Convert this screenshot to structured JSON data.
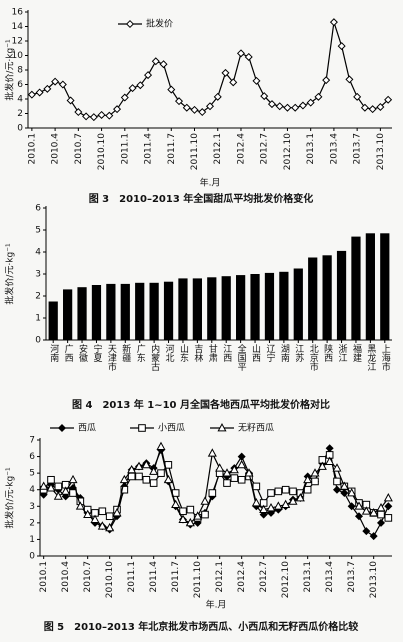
{
  "chart_data": [
    {
      "type": "line",
      "caption": "图 3　2010–2013 年全国甜瓜平均批发价格变化",
      "y_label": "批发价/元·kg⁻¹",
      "x_label": "年.月",
      "categories": [
        "2010.1",
        null,
        null,
        "2010.4",
        null,
        null,
        "2010.7",
        null,
        null,
        "2010.10",
        null,
        null,
        "2011.1",
        null,
        null,
        "2011.4",
        null,
        null,
        "2011.7",
        null,
        null,
        "2011.10",
        null,
        null,
        "2012.1",
        null,
        null,
        "2012.4",
        null,
        null,
        "2012.7",
        null,
        null,
        "2012.10",
        null,
        null,
        "2013.1",
        null,
        null,
        "2013.4",
        null,
        null,
        "2013.7",
        null,
        null,
        "2013.10",
        null
      ],
      "series": [
        {
          "name": "批发价",
          "color": "#000000",
          "marker": "diamond",
          "filled": false,
          "values": [
            4.6,
            4.9,
            5.4,
            6.4,
            6.0,
            3.8,
            2.2,
            1.6,
            1.5,
            1.8,
            1.7,
            2.6,
            4.2,
            5.5,
            5.9,
            7.3,
            9.2,
            8.8,
            5.3,
            3.7,
            2.8,
            2.5,
            2.2,
            3.0,
            4.3,
            7.6,
            6.3,
            10.3,
            9.8,
            6.5,
            4.4,
            3.3,
            3.0,
            2.8,
            2.8,
            3.1,
            3.5,
            4.3,
            6.6,
            14.6,
            11.3,
            6.7,
            4.3,
            2.8,
            2.6,
            2.9,
            3.9
          ]
        }
      ],
      "ylim": [
        0,
        16
      ],
      "yticks": [
        0,
        2,
        4,
        6,
        8,
        10,
        12,
        14,
        16
      ],
      "legend": "top-left"
    },
    {
      "type": "bar",
      "caption": "图 4　2013 年 1~10 月全国各地西瓜平均批发价格对比",
      "y_label": "批发价/元·kg⁻¹",
      "categories": [
        "河南",
        "广西",
        "安徽",
        "宁夏",
        "天津市",
        "新疆",
        "广东",
        "内蒙古",
        "河北",
        "山东",
        "吉林",
        "甘肃",
        "江西",
        "全国平",
        "山西",
        "辽宁",
        "湖南",
        "江苏",
        "北京市",
        "陕西",
        "浙江",
        "福建",
        "黑龙江",
        "上海市"
      ],
      "values": [
        1.75,
        2.3,
        2.4,
        2.5,
        2.55,
        2.55,
        2.6,
        2.6,
        2.65,
        2.8,
        2.8,
        2.85,
        2.9,
        2.95,
        3.0,
        3.05,
        3.1,
        3.25,
        3.75,
        3.85,
        4.05,
        4.7,
        4.85,
        4.85
      ],
      "color": "#000000",
      "ylim": [
        0,
        6
      ],
      "yticks": [
        0,
        1,
        2,
        3,
        4,
        5,
        6
      ]
    },
    {
      "type": "line",
      "caption": "图 5　2010–2013 年北京批发市场西瓜、小西瓜和无籽西瓜价格比较",
      "y_label": "批发价/元·kg⁻¹",
      "x_label": "年.月",
      "categories": [
        "2010.1",
        null,
        null,
        "2010.4",
        null,
        null,
        "2010.7",
        null,
        null,
        "2010.10",
        null,
        null,
        "2011.1",
        null,
        null,
        "2011.4",
        null,
        null,
        "2011.7",
        null,
        null,
        "2011.10",
        null,
        null,
        "2012.1",
        null,
        null,
        "2012.4",
        null,
        null,
        "2012.7",
        null,
        null,
        "2012.10",
        null,
        null,
        "2013.1",
        null,
        null,
        "2013.4",
        null,
        null,
        "2013.7",
        null,
        null,
        "2013.10",
        null,
        null
      ],
      "series": [
        {
          "name": "西瓜",
          "color": "#000000",
          "marker": "diamond",
          "filled": true,
          "values": [
            3.7,
            4.3,
            4.0,
            3.6,
            4.1,
            3.5,
            2.6,
            2.0,
            1.8,
            1.6,
            2.4,
            4.2,
            5.2,
            5.4,
            5.6,
            5.3,
            6.4,
            4.5,
            3.0,
            2.2,
            1.9,
            2.0,
            2.6,
            3.6,
            5.1,
            4.8,
            5.3,
            6.0,
            5.0,
            3.0,
            2.5,
            2.6,
            2.8,
            3.0,
            3.4,
            3.5,
            4.8,
            4.5,
            5.6,
            6.5,
            4.0,
            3.8,
            3.0,
            2.4,
            1.5,
            1.2,
            2.0,
            3.0
          ]
        },
        {
          "name": "小西瓜",
          "color": "#000000",
          "marker": "square",
          "filled": false,
          "values": [
            4.0,
            4.6,
            4.2,
            4.3,
            3.8,
            3.3,
            2.8,
            2.6,
            2.7,
            2.4,
            2.8,
            4.0,
            4.8,
            4.8,
            4.6,
            4.4,
            5.0,
            5.5,
            3.8,
            2.7,
            2.8,
            2.3,
            2.5,
            3.8,
            5.0,
            4.4,
            4.7,
            4.6,
            4.8,
            4.2,
            3.2,
            3.8,
            3.9,
            4.0,
            3.9,
            3.8,
            4.0,
            4.5,
            5.8,
            6.1,
            4.5,
            4.2,
            3.9,
            3.2,
            3.1,
            2.6,
            2.5,
            2.3
          ]
        },
        {
          "name": "无籽西瓜",
          "color": "#000000",
          "marker": "triangle",
          "filled": false,
          "values": [
            4.2,
            4.1,
            3.6,
            3.9,
            4.6,
            3.0,
            2.5,
            2.2,
            1.8,
            1.7,
            2.6,
            4.6,
            5.2,
            5.4,
            5.5,
            5.1,
            6.6,
            4.6,
            3.1,
            2.2,
            2.0,
            2.4,
            3.3,
            6.2,
            5.3,
            5.0,
            5.2,
            5.5,
            5.0,
            3.2,
            2.8,
            2.9,
            3.0,
            3.1,
            3.3,
            3.5,
            4.6,
            5.0,
            5.4,
            5.7,
            5.3,
            4.2,
            3.8,
            3.0,
            2.7,
            2.6,
            2.9,
            3.5
          ]
        }
      ],
      "ylim": [
        0,
        7
      ],
      "yticks": [
        0,
        1,
        2,
        3,
        4,
        5,
        6,
        7
      ],
      "legend": "top"
    }
  ]
}
